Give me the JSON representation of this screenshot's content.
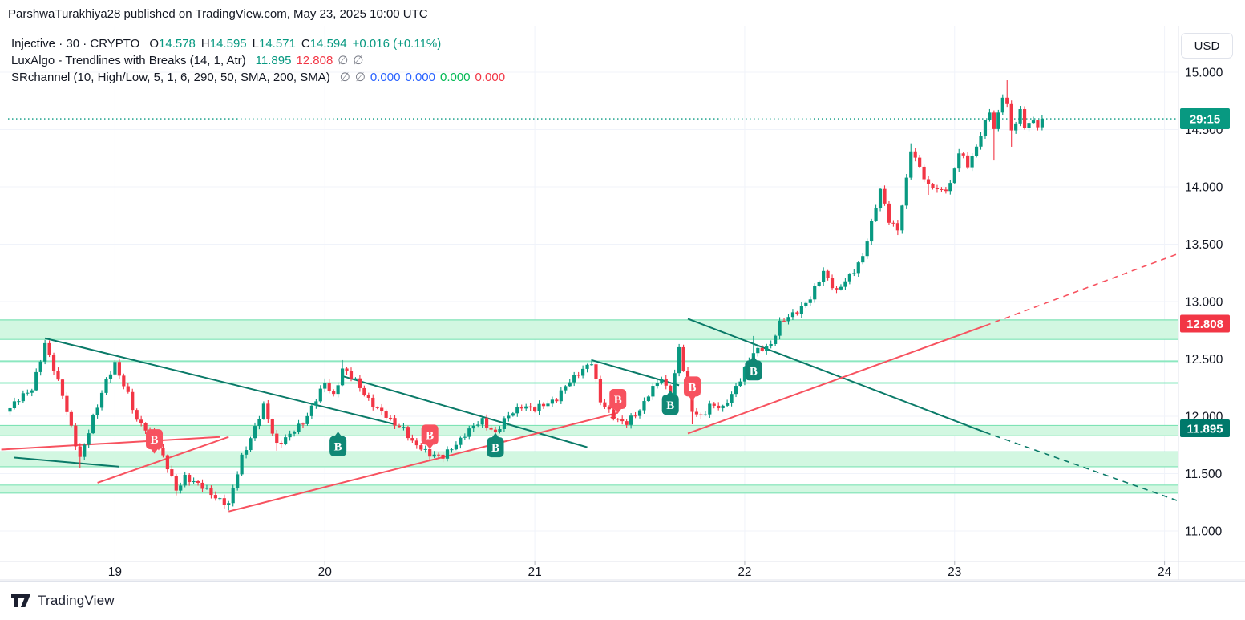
{
  "header": {
    "published": "ParshwaTurakhiya28 published on TradingView.com, May 23, 2025 10:00 UTC"
  },
  "legend": {
    "symbol_row": {
      "title": "Injective · 30 · CRYPTO",
      "o_label": "O",
      "o": "14.578",
      "h_label": "H",
      "h": "14.595",
      "l_label": "L",
      "l": "14.571",
      "c_label": "C",
      "c": "14.594",
      "change": "+0.016 (+0.11%)"
    },
    "luxalgo_row": {
      "title": "LuxAlgo - Trendlines with Breaks (14, 1, Atr)",
      "lower": "11.895",
      "upper": "12.808",
      "na1": "∅",
      "na2": "∅"
    },
    "srchannel_row": {
      "title": "SRchannel (10, High/Low, 5, 1, 6, 290, 50, SMA, 200, SMA)",
      "na1": "∅",
      "na2": "∅",
      "v1": "0.000",
      "v2": "0.000",
      "v3": "0.000",
      "v4": "0.000"
    }
  },
  "axis": {
    "currency": "USD"
  },
  "footer": {
    "brand": "TradingView"
  },
  "chart_data": {
    "type": "candlestick",
    "symbol": "Injective",
    "interval": "30",
    "market": "CRYPTO",
    "current": {
      "open": 14.578,
      "high": 14.595,
      "low": 14.571,
      "close": 14.594,
      "change": "+0.016",
      "change_pct": "+0.11%",
      "countdown": "29:15"
    },
    "bars": 237,
    "ylim": [
      11.0,
      15.0
    ],
    "price_ticks": [
      {
        "label": "15.000",
        "value": 15.0
      },
      {
        "label": "14.500",
        "value": 14.5
      },
      {
        "label": "14.000",
        "value": 14.0
      },
      {
        "label": "13.500",
        "value": 13.5
      },
      {
        "label": "13.000",
        "value": 13.0
      },
      {
        "label": "12.500",
        "value": 12.5
      },
      {
        "label": "12.000",
        "value": 12.0
      },
      {
        "label": "11.500",
        "value": 11.5
      },
      {
        "label": "11.000",
        "value": 11.0
      }
    ],
    "time_ticks": [
      {
        "label": "19"
      },
      {
        "label": "20"
      },
      {
        "label": "21"
      },
      {
        "label": "22"
      },
      {
        "label": "23"
      },
      {
        "label": "24"
      }
    ],
    "price_path": [
      [
        0,
        12.07
      ],
      [
        5,
        12.25
      ],
      [
        8,
        12.62
      ],
      [
        12,
        12.2
      ],
      [
        15,
        11.75
      ],
      [
        16,
        11.62
      ],
      [
        19,
        12.0
      ],
      [
        22,
        12.3
      ],
      [
        24,
        12.45
      ],
      [
        27,
        12.2
      ],
      [
        29,
        11.95
      ],
      [
        33,
        11.83
      ],
      [
        36,
        11.55
      ],
      [
        38,
        11.35
      ],
      [
        40,
        11.48
      ],
      [
        43,
        11.4
      ],
      [
        46,
        11.33
      ],
      [
        50,
        11.22
      ],
      [
        53,
        11.65
      ],
      [
        56,
        11.9
      ],
      [
        58,
        12.08
      ],
      [
        61,
        11.76
      ],
      [
        64,
        11.83
      ],
      [
        67,
        11.95
      ],
      [
        70,
        12.15
      ],
      [
        72,
        12.28
      ],
      [
        74,
        12.18
      ],
      [
        76,
        12.42
      ],
      [
        79,
        12.3
      ],
      [
        81,
        12.2
      ],
      [
        84,
        12.06
      ],
      [
        87,
        11.96
      ],
      [
        90,
        11.9
      ],
      [
        92,
        11.76
      ],
      [
        96,
        11.68
      ],
      [
        99,
        11.64
      ],
      [
        101,
        11.72
      ],
      [
        104,
        11.85
      ],
      [
        108,
        11.96
      ],
      [
        111,
        11.86
      ],
      [
        114,
        12.0
      ],
      [
        117,
        12.1
      ],
      [
        120,
        12.05
      ],
      [
        122,
        12.1
      ],
      [
        125,
        12.16
      ],
      [
        128,
        12.3
      ],
      [
        131,
        12.42
      ],
      [
        133,
        12.47
      ],
      [
        135,
        12.12
      ],
      [
        137,
        12.05
      ],
      [
        139,
        11.97
      ],
      [
        141,
        11.93
      ],
      [
        144,
        12.06
      ],
      [
        146,
        12.2
      ],
      [
        149,
        12.33
      ],
      [
        151,
        12.16
      ],
      [
        153,
        12.6
      ],
      [
        156,
        12.04
      ],
      [
        158,
        12.0
      ],
      [
        160,
        12.1
      ],
      [
        163,
        12.06
      ],
      [
        165,
        12.2
      ],
      [
        167,
        12.33
      ],
      [
        170,
        12.55
      ],
      [
        172,
        12.6
      ],
      [
        174,
        12.63
      ],
      [
        176,
        12.8
      ],
      [
        179,
        12.9
      ],
      [
        181,
        12.95
      ],
      [
        183,
        13.02
      ],
      [
        186,
        13.27
      ],
      [
        189,
        13.08
      ],
      [
        192,
        13.22
      ],
      [
        195,
        13.4
      ],
      [
        197,
        13.67
      ],
      [
        199,
        13.98
      ],
      [
        201,
        13.72
      ],
      [
        203,
        13.62
      ],
      [
        205,
        14.05
      ],
      [
        206,
        14.33
      ],
      [
        208,
        14.18
      ],
      [
        210,
        14.0
      ],
      [
        213,
        13.96
      ],
      [
        215,
        14.03
      ],
      [
        217,
        14.3
      ],
      [
        219,
        14.18
      ],
      [
        221,
        14.35
      ],
      [
        222,
        14.48
      ],
      [
        224,
        14.65
      ],
      [
        225,
        14.5
      ],
      [
        226,
        14.62
      ],
      [
        227,
        14.8
      ],
      [
        228,
        14.72
      ],
      [
        229,
        14.5
      ],
      [
        231,
        14.65
      ],
      [
        232,
        14.52
      ],
      [
        234,
        14.58
      ],
      [
        235,
        14.52
      ],
      [
        236,
        14.594
      ]
    ],
    "wick_highs": [
      [
        8,
        12.66
      ],
      [
        24,
        12.49
      ],
      [
        58,
        12.12
      ],
      [
        72,
        12.33
      ],
      [
        76,
        12.49
      ],
      [
        133,
        12.5
      ],
      [
        153,
        12.63
      ],
      [
        170,
        12.7
      ],
      [
        206,
        14.38
      ],
      [
        217,
        14.33
      ],
      [
        228,
        14.93
      ]
    ],
    "wick_lows": [
      [
        16,
        11.55
      ],
      [
        38,
        11.31
      ],
      [
        50,
        11.18
      ],
      [
        61,
        11.7
      ],
      [
        99,
        11.6
      ],
      [
        141,
        11.9
      ],
      [
        156,
        11.93
      ],
      [
        203,
        13.58
      ],
      [
        210,
        13.93
      ],
      [
        225,
        14.23
      ],
      [
        229,
        14.35
      ]
    ],
    "sr_bands": [
      {
        "top": 12.84,
        "bottom": 12.67
      },
      {
        "top": 11.92,
        "bottom": 11.83
      },
      {
        "top": 11.69,
        "bottom": 11.56
      },
      {
        "top": 11.4,
        "bottom": 11.33
      }
    ],
    "sr_lines": [
      12.48,
      12.29
    ],
    "trendlines": [
      {
        "color": "teal",
        "from": [
          1,
          11.64
        ],
        "to": [
          25,
          11.56
        ]
      },
      {
        "color": "teal",
        "from": [
          8,
          12.68
        ],
        "to": [
          88,
          11.93
        ]
      },
      {
        "color": "teal",
        "from": [
          76,
          12.35
        ],
        "to": [
          132,
          11.73
        ]
      },
      {
        "color": "teal",
        "from": [
          133,
          12.49
        ],
        "to": [
          153,
          12.27
        ]
      },
      {
        "color": "teal",
        "from": [
          155,
          12.85
        ],
        "to": [
          223,
          11.86
        ],
        "dash_to": [
          268,
          11.25
        ]
      },
      {
        "color": "red",
        "from": [
          -2,
          11.71
        ],
        "to": [
          48,
          11.82
        ]
      },
      {
        "color": "red",
        "from": [
          20,
          11.42
        ],
        "to": [
          50,
          11.82
        ]
      },
      {
        "color": "red",
        "from": [
          50,
          11.17
        ],
        "to": [
          139,
          12.03
        ]
      },
      {
        "color": "red",
        "from": [
          155,
          11.85
        ],
        "to": [
          223,
          12.79
        ],
        "dash_to": [
          268,
          13.43
        ]
      }
    ],
    "breaks": [
      {
        "dir": "bear",
        "bar": 33,
        "price": 11.8,
        "label": "B"
      },
      {
        "dir": "bull",
        "bar": 75,
        "price": 11.74,
        "label": "B"
      },
      {
        "dir": "bear",
        "bar": 96,
        "price": 11.84,
        "label": "B"
      },
      {
        "dir": "bull",
        "bar": 111,
        "price": 11.73,
        "label": "B"
      },
      {
        "dir": "bear",
        "bar": 139,
        "price": 12.15,
        "label": "B"
      },
      {
        "dir": "bull",
        "bar": 151,
        "price": 12.1,
        "label": "B"
      },
      {
        "dir": "bear",
        "bar": 156,
        "price": 12.26,
        "label": "B"
      },
      {
        "dir": "bull",
        "bar": 170,
        "price": 12.4,
        "label": "B"
      }
    ],
    "cross_marks": [
      {
        "bar": 138,
        "price": 12.0
      }
    ],
    "current_price_line": 14.594,
    "price_labels": [
      {
        "text": "29:15",
        "price": 14.594,
        "bg": "#089981",
        "name": "countdown-label"
      },
      {
        "text": "12.808",
        "price": 12.808,
        "bg": "#f23645",
        "name": "upper-trendline-price-label"
      },
      {
        "text": "11.895",
        "price": 11.895,
        "bg": "#00796b",
        "name": "lower-trendline-price-label"
      }
    ],
    "colors": {
      "up": "#089981",
      "down": "#f23645",
      "band_fill": "#d2f7e1",
      "band_edge": "#7ee3b5",
      "sr_line": "#8ce8c0",
      "trend_teal": "#0a7a68",
      "trend_red": "#f7525f",
      "grid": "#f0f3fa",
      "axis_text": "#131722",
      "separator": "#e0e3eb",
      "tag_bull": "#0f8775",
      "tag_bear": "#f7525f",
      "current_line": "#089981"
    },
    "legend_position": "top-left",
    "grid": true
  }
}
